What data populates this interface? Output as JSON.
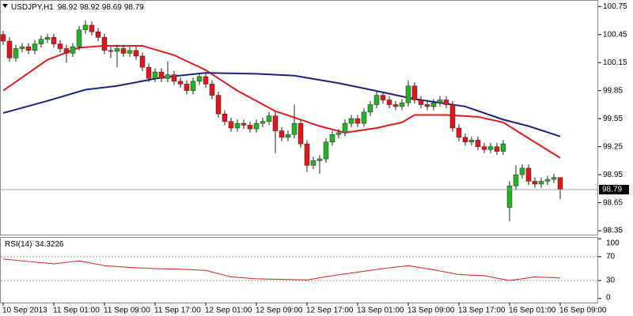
{
  "chart_data": [
    {
      "type": "candlestick",
      "symbol": "USDJPY,H1",
      "categories": [
        "10 Sep 2013",
        null,
        null,
        null,
        null,
        null,
        null,
        null,
        "11 Sep 01:00",
        null,
        null,
        null,
        null,
        null,
        null,
        null,
        "11 Sep 09:00",
        null,
        null,
        null,
        null,
        null,
        null,
        null,
        "11 Sep 17:00",
        null,
        null,
        null,
        null,
        null,
        null,
        null,
        "12 Sep 01:00",
        null,
        null,
        null,
        null,
        null,
        null,
        null,
        "12 Sep 09:00",
        null,
        null,
        null,
        null,
        null,
        null,
        null,
        "12 Sep 17:00",
        null,
        null,
        null,
        null,
        null,
        null,
        null,
        "13 Sep 01:00",
        null,
        null,
        null,
        null,
        null,
        null,
        null,
        "13 Sep 09:00",
        null,
        null,
        null,
        null,
        null,
        null,
        null,
        "13 Sep 17:00",
        null,
        null,
        null,
        null,
        null,
        null,
        null,
        "16 Sep 01:00",
        null,
        null,
        null,
        null,
        null,
        null,
        null,
        "16 Sep 09:00"
      ],
      "open": [
        100.45,
        100.38,
        100.2,
        100.3,
        100.32,
        100.28,
        100.35,
        100.4,
        100.42,
        100.35,
        100.3,
        100.25,
        100.32,
        100.5,
        100.55,
        100.48,
        100.42,
        100.28,
        100.27,
        100.3,
        100.25,
        100.28,
        100.22,
        100.1,
        99.98,
        100.05,
        99.98,
        100.02,
        99.95,
        99.92,
        99.85,
        99.95,
        100.0,
        99.92,
        99.8,
        99.6,
        99.52,
        99.45,
        99.5,
        99.48,
        99.44,
        99.5,
        99.52,
        99.58,
        99.42,
        99.35,
        99.38,
        99.5,
        99.28,
        99.05,
        99.1,
        99.12,
        99.3,
        99.38,
        99.4,
        99.5,
        99.55,
        99.5,
        99.62,
        99.7,
        99.8,
        99.75,
        99.7,
        99.68,
        99.72,
        99.9,
        99.75,
        99.7,
        99.68,
        99.72,
        99.75,
        99.7,
        99.45,
        99.35,
        99.3,
        99.32,
        99.25,
        99.22,
        99.25,
        99.2,
        98.6,
        98.83,
        98.95,
        99.02,
        98.88,
        98.85,
        98.88,
        98.9,
        98.92
      ],
      "high": [
        100.49,
        100.42,
        100.34,
        100.36,
        100.36,
        100.39,
        100.44,
        100.46,
        100.46,
        100.39,
        100.34,
        100.36,
        100.54,
        100.6,
        100.59,
        100.52,
        100.46,
        100.32,
        100.34,
        100.34,
        100.32,
        100.32,
        100.26,
        100.14,
        100.09,
        100.09,
        100.16,
        100.06,
        99.99,
        99.96,
        99.99,
        100.04,
        100.04,
        99.96,
        99.84,
        99.64,
        99.56,
        99.54,
        99.54,
        99.52,
        99.54,
        99.56,
        99.62,
        99.62,
        99.46,
        99.42,
        99.7,
        99.54,
        99.32,
        99.14,
        99.16,
        99.34,
        99.42,
        99.44,
        99.54,
        99.59,
        99.59,
        99.66,
        99.74,
        99.84,
        99.84,
        99.79,
        99.74,
        99.76,
        99.96,
        99.94,
        99.79,
        99.74,
        99.76,
        99.79,
        99.79,
        99.74,
        99.49,
        99.39,
        99.36,
        99.36,
        99.29,
        99.29,
        99.29,
        99.32,
        98.88,
        99.05,
        99.06,
        99.06,
        98.92,
        98.92,
        98.94,
        98.96,
        98.92
      ],
      "low": [
        100.34,
        100.16,
        100.16,
        100.26,
        100.24,
        100.24,
        100.31,
        100.36,
        100.31,
        100.26,
        100.15,
        100.21,
        100.28,
        100.46,
        100.44,
        100.38,
        100.24,
        100.2,
        100.1,
        100.21,
        100.21,
        100.18,
        100.06,
        99.94,
        99.94,
        99.94,
        99.94,
        99.91,
        99.88,
        99.81,
        99.81,
        99.91,
        99.88,
        99.76,
        99.56,
        99.48,
        99.41,
        99.41,
        99.44,
        99.4,
        99.4,
        99.46,
        99.48,
        99.18,
        99.31,
        99.31,
        99.34,
        99.24,
        98.98,
        99.01,
        98.96,
        99.08,
        99.26,
        99.34,
        99.36,
        99.46,
        99.46,
        99.46,
        99.58,
        99.66,
        99.71,
        99.66,
        99.64,
        99.64,
        99.68,
        99.71,
        99.66,
        99.64,
        99.64,
        99.68,
        99.66,
        99.41,
        99.31,
        99.26,
        99.26,
        99.21,
        99.18,
        99.18,
        99.16,
        99.16,
        98.45,
        98.79,
        98.91,
        98.84,
        98.81,
        98.81,
        98.84,
        98.86,
        98.69
      ],
      "close": [
        100.38,
        100.2,
        100.3,
        100.32,
        100.28,
        100.35,
        100.4,
        100.42,
        100.35,
        100.3,
        100.25,
        100.32,
        100.5,
        100.55,
        100.48,
        100.42,
        100.28,
        100.27,
        100.3,
        100.25,
        100.28,
        100.22,
        100.1,
        99.98,
        100.05,
        99.98,
        100.02,
        99.95,
        99.92,
        99.85,
        99.95,
        100.0,
        99.92,
        99.8,
        99.6,
        99.52,
        99.45,
        99.5,
        99.48,
        99.44,
        99.5,
        99.52,
        99.58,
        99.42,
        99.35,
        99.38,
        99.5,
        99.28,
        99.05,
        99.1,
        99.12,
        99.3,
        99.38,
        99.4,
        99.5,
        99.55,
        99.5,
        99.62,
        99.7,
        99.8,
        99.75,
        99.7,
        99.68,
        99.72,
        99.9,
        99.75,
        99.7,
        99.68,
        99.72,
        99.75,
        99.7,
        99.45,
        99.35,
        99.3,
        99.32,
        99.25,
        99.22,
        99.25,
        99.2,
        99.28,
        98.83,
        98.95,
        99.02,
        98.88,
        98.85,
        98.88,
        98.9,
        98.92,
        98.79
      ],
      "up_color": "#22b422",
      "down_color": "#e8141c",
      "wick_color": "#222222",
      "series": [
        {
          "color": "#e31a1c",
          "x": [
            0,
            7,
            12,
            16,
            22,
            27,
            32,
            37,
            43,
            50,
            54,
            59,
            63,
            65,
            70,
            75,
            79,
            83,
            88
          ],
          "values": [
            99.85,
            100.18,
            100.31,
            100.33,
            100.33,
            100.23,
            100.07,
            99.85,
            99.63,
            99.47,
            99.4,
            99.45,
            99.51,
            99.59,
            99.59,
            99.57,
            99.51,
            99.34,
            99.13
          ]
        },
        {
          "color": "#1a237e",
          "x": [
            0,
            7,
            13,
            18,
            25,
            32,
            40,
            46,
            53,
            58,
            65,
            73,
            79,
            83,
            88
          ],
          "values": [
            99.61,
            99.74,
            99.86,
            99.9,
            99.99,
            100.04,
            100.03,
            100.01,
            99.93,
            99.86,
            99.76,
            99.68,
            99.54,
            99.47,
            99.36
          ]
        }
      ],
      "ylim": [
        98.3,
        100.82
      ],
      "yticks": [
        98.35,
        98.65,
        98.95,
        99.25,
        99.55,
        99.85,
        100.15,
        100.45,
        100.75
      ]
    },
    {
      "type": "line",
      "title": "RSI(14)",
      "color": "#e31a1c",
      "x": [
        0,
        4,
        8,
        12,
        16,
        20,
        24,
        28,
        32,
        36,
        40,
        44,
        48,
        52,
        56,
        60,
        64,
        68,
        72,
        76,
        80,
        84,
        88
      ],
      "values": [
        66,
        62,
        58,
        63,
        55,
        52,
        50,
        49,
        47,
        36,
        33,
        32,
        31,
        38,
        44,
        50,
        55,
        48,
        40,
        38,
        30,
        36,
        34.3226
      ],
      "ylim": [
        -7,
        103
      ],
      "yticks": [
        0,
        30,
        70,
        100
      ],
      "levels": [
        30,
        70
      ]
    }
  ]
}
